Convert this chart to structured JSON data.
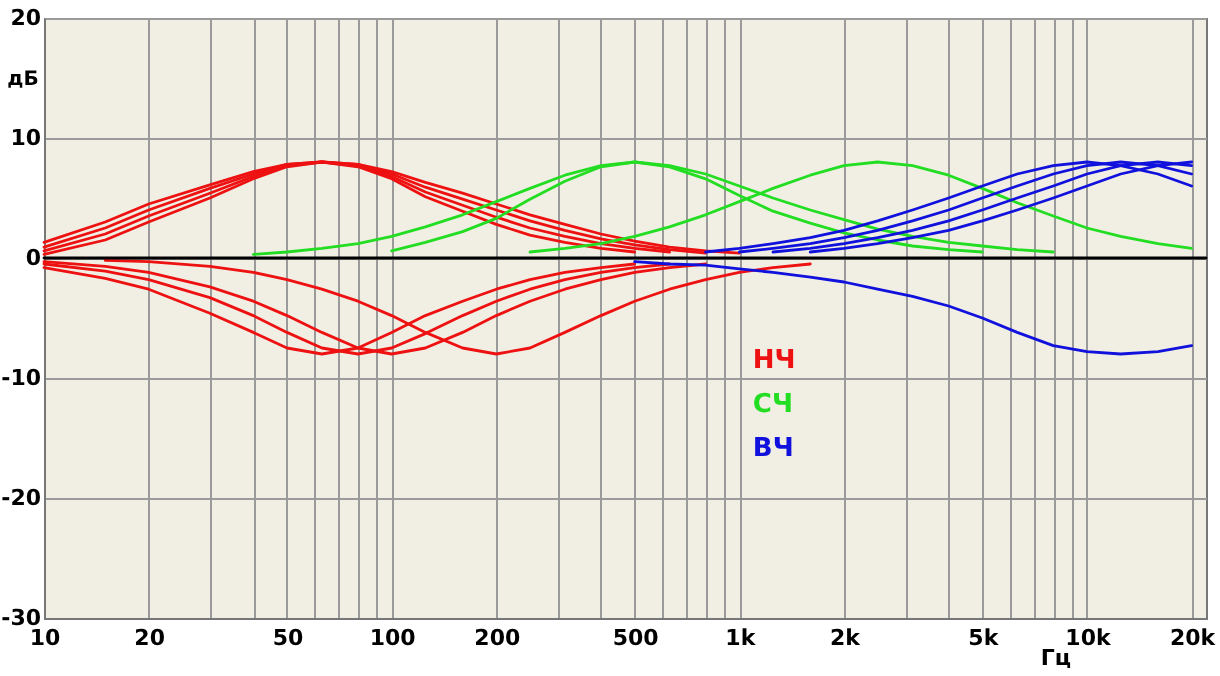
{
  "chart_data": {
    "type": "line",
    "xlabel": "Гц",
    "ylabel": "дБ",
    "log": "x",
    "grid": true,
    "legend": "bottom",
    "marker": "none",
    "xlim": [
      10,
      22000
    ],
    "ylim": [
      -30,
      20
    ],
    "xticks": [
      10,
      20,
      {
        "value": 30,
        "label": null
      },
      {
        "value": 40,
        "label": null
      },
      50,
      {
        "value": 60,
        "label": null
      },
      {
        "value": 70,
        "label": null
      },
      {
        "value": 80,
        "label": null
      },
      {
        "value": 90,
        "label": null
      },
      100,
      200,
      {
        "value": 300,
        "label": null
      },
      {
        "value": 400,
        "label": null
      },
      500,
      {
        "value": 600,
        "label": null
      },
      {
        "value": 700,
        "label": null
      },
      {
        "value": 800,
        "label": null
      },
      {
        "value": 900,
        "label": null
      },
      {
        "value": 1000,
        "label": "1k"
      },
      {
        "value": 2000,
        "label": "2k"
      },
      {
        "value": 3000,
        "label": null
      },
      {
        "value": 4000,
        "label": null
      },
      {
        "value": 5000,
        "label": "5k"
      },
      {
        "value": 6000,
        "label": null
      },
      {
        "value": 7000,
        "label": null
      },
      {
        "value": 8000,
        "label": null
      },
      {
        "value": 9000,
        "label": null
      },
      {
        "value": 10000,
        "label": "10k"
      },
      {
        "value": 20000,
        "label": "20k"
      }
    ],
    "yticks": [
      -30,
      -20,
      -10,
      0,
      10,
      20
    ],
    "x": [
      10,
      15,
      20,
      30,
      40,
      50,
      63,
      80,
      100,
      125,
      160,
      200,
      250,
      315,
      400,
      500,
      630,
      800,
      1000,
      1250,
      1600,
      2000,
      2500,
      3150,
      4000,
      5000,
      6300,
      8000,
      10000,
      12500,
      16000,
      20000
    ],
    "series": [
      {
        "name": "НЧ",
        "color": "#ee1111",
        "values": [
          1.3,
          3.0,
          4.5,
          6.1,
          7.2,
          7.8,
          8,
          7.8,
          7.2,
          6.3,
          5.4,
          4.5,
          3.6,
          2.8,
          2.0,
          1.4,
          0.9,
          0.6,
          0.4,
          null,
          null,
          null,
          null,
          null,
          null,
          null,
          null,
          null,
          null,
          null,
          null,
          null
        ]
      },
      {
        "color": "#ee1111",
        "values": [
          0.9,
          2.5,
          4.0,
          5.8,
          7.0,
          7.8,
          8,
          7.8,
          7.0,
          5.9,
          4.9,
          4.0,
          3.1,
          2.3,
          1.6,
          1.1,
          0.7,
          0.4,
          null,
          null,
          null,
          null,
          null,
          null,
          null,
          null,
          null,
          null,
          null,
          null,
          null,
          null
        ]
      },
      {
        "color": "#ee1111",
        "values": [
          0.6,
          2.0,
          3.5,
          5.4,
          6.8,
          7.7,
          8,
          7.7,
          6.8,
          5.5,
          4.4,
          3.4,
          2.5,
          1.8,
          1.2,
          0.8,
          0.5,
          null,
          null,
          null,
          null,
          null,
          null,
          null,
          null,
          null,
          null,
          null,
          null,
          null,
          null,
          null
        ]
      },
      {
        "color": "#ee1111",
        "values": [
          0.3,
          1.5,
          3.0,
          5.0,
          6.6,
          7.6,
          8,
          7.6,
          6.6,
          5.1,
          3.9,
          2.8,
          1.9,
          1.3,
          0.8,
          0.5,
          null,
          null,
          null,
          null,
          null,
          null,
          null,
          null,
          null,
          null,
          null,
          null,
          null,
          null,
          null,
          null
        ]
      },
      {
        "color": "#ee1111",
        "values": [
          -0.8,
          -1.7,
          -2.6,
          -4.6,
          -6.2,
          -7.5,
          -8,
          -7.5,
          -6.2,
          -4.8,
          -3.6,
          -2.6,
          -1.8,
          -1.2,
          -0.8,
          -0.5,
          null,
          null,
          null,
          null,
          null,
          null,
          null,
          null,
          null,
          null,
          null,
          null,
          null,
          null,
          null,
          null
        ]
      },
      {
        "color": "#ee1111",
        "values": [
          -0.5,
          -1.1,
          -1.8,
          -3.3,
          -4.8,
          -6.2,
          -7.5,
          -8,
          -7.5,
          -6.3,
          -4.8,
          -3.6,
          -2.6,
          -1.8,
          -1.2,
          -0.8,
          -0.5,
          null,
          null,
          null,
          null,
          null,
          null,
          null,
          null,
          null,
          null,
          null,
          null,
          null,
          null,
          null
        ]
      },
      {
        "color": "#ee1111",
        "values": [
          -0.3,
          -0.7,
          -1.2,
          -2.4,
          -3.6,
          -4.8,
          -6.2,
          -7.5,
          -8,
          -7.5,
          -6.2,
          -4.8,
          -3.6,
          -2.6,
          -1.8,
          -1.2,
          -0.8,
          -0.5,
          null,
          null,
          null,
          null,
          null,
          null,
          null,
          null,
          null,
          null,
          null,
          null,
          null,
          null
        ]
      },
      {
        "color": "#ee1111",
        "values": [
          null,
          -0.2,
          -0.3,
          -0.7,
          -1.2,
          -1.8,
          -2.6,
          -3.6,
          -4.8,
          -6.2,
          -7.5,
          -8,
          -7.5,
          -6.2,
          -4.8,
          -3.6,
          -2.6,
          -1.8,
          -1.2,
          -0.8,
          -0.5,
          null,
          null,
          null,
          null,
          null,
          null,
          null,
          null,
          null,
          null,
          null
        ]
      },
      {
        "name": "СЧ",
        "color": "#22dd22",
        "values": [
          null,
          null,
          null,
          null,
          0.3,
          0.5,
          0.8,
          1.2,
          1.8,
          2.6,
          3.6,
          4.7,
          5.8,
          6.9,
          7.7,
          8,
          7.7,
          7.0,
          6.0,
          5.0,
          4.0,
          3.2,
          2.4,
          1.8,
          1.3,
          1.0,
          0.7,
          0.5,
          null,
          null,
          null,
          null
        ]
      },
      {
        "color": "#22dd22",
        "values": [
          null,
          null,
          null,
          null,
          null,
          null,
          null,
          null,
          0.6,
          1.3,
          2.2,
          3.3,
          4.9,
          6.4,
          7.6,
          8,
          7.6,
          6.6,
          5.2,
          3.9,
          2.9,
          2.1,
          1.5,
          1.0,
          0.7,
          0.5,
          null,
          null,
          null,
          null,
          null,
          null
        ]
      },
      {
        "color": "#22dd22",
        "values": [
          null,
          null,
          null,
          null,
          null,
          null,
          null,
          null,
          null,
          null,
          null,
          null,
          0.5,
          0.8,
          1.2,
          1.8,
          2.6,
          3.6,
          4.7,
          5.8,
          6.9,
          7.7,
          8,
          7.7,
          6.9,
          5.8,
          4.6,
          3.5,
          2.5,
          1.8,
          1.2,
          0.8
        ]
      },
      {
        "name": "ВЧ",
        "color": "#1111dd",
        "values": [
          null,
          null,
          null,
          null,
          null,
          null,
          null,
          null,
          null,
          null,
          null,
          null,
          null,
          null,
          null,
          null,
          null,
          0.5,
          0.8,
          1.2,
          1.7,
          2.3,
          3.1,
          4.0,
          5.0,
          6.0,
          7.0,
          7.7,
          8,
          7.7,
          7.0,
          6.0
        ]
      },
      {
        "color": "#1111dd",
        "values": [
          null,
          null,
          null,
          null,
          null,
          null,
          null,
          null,
          null,
          null,
          null,
          null,
          null,
          null,
          null,
          null,
          null,
          null,
          0.5,
          0.8,
          1.2,
          1.7,
          2.3,
          3.1,
          4.0,
          5.0,
          6.0,
          7.0,
          7.7,
          8,
          7.7,
          7.0
        ]
      },
      {
        "color": "#1111dd",
        "values": [
          null,
          null,
          null,
          null,
          null,
          null,
          null,
          null,
          null,
          null,
          null,
          null,
          null,
          null,
          null,
          null,
          null,
          null,
          null,
          0.5,
          0.8,
          1.2,
          1.7,
          2.3,
          3.1,
          4.0,
          5.0,
          6.0,
          7.0,
          7.7,
          8,
          7.7
        ]
      },
      {
        "color": "#1111dd",
        "values": [
          null,
          null,
          null,
          null,
          null,
          null,
          null,
          null,
          null,
          null,
          null,
          null,
          null,
          null,
          null,
          null,
          null,
          null,
          null,
          null,
          0.5,
          0.8,
          1.2,
          1.7,
          2.3,
          3.1,
          4.0,
          5.0,
          6.0,
          7.0,
          7.7,
          8
        ]
      },
      {
        "color": "#1111dd",
        "values": [
          null,
          null,
          null,
          null,
          null,
          null,
          null,
          null,
          null,
          null,
          null,
          null,
          null,
          null,
          null,
          -0.3,
          -0.5,
          -0.6,
          -0.9,
          -1.2,
          -1.6,
          -2.0,
          -2.6,
          -3.2,
          -4.0,
          -5.0,
          -6.2,
          -7.3,
          -7.8,
          -8,
          -7.8,
          -7.3
        ]
      },
      {
        "color": "#000000",
        "x": [
          10,
          22000
        ],
        "values": [
          0,
          0
        ]
      }
    ]
  }
}
